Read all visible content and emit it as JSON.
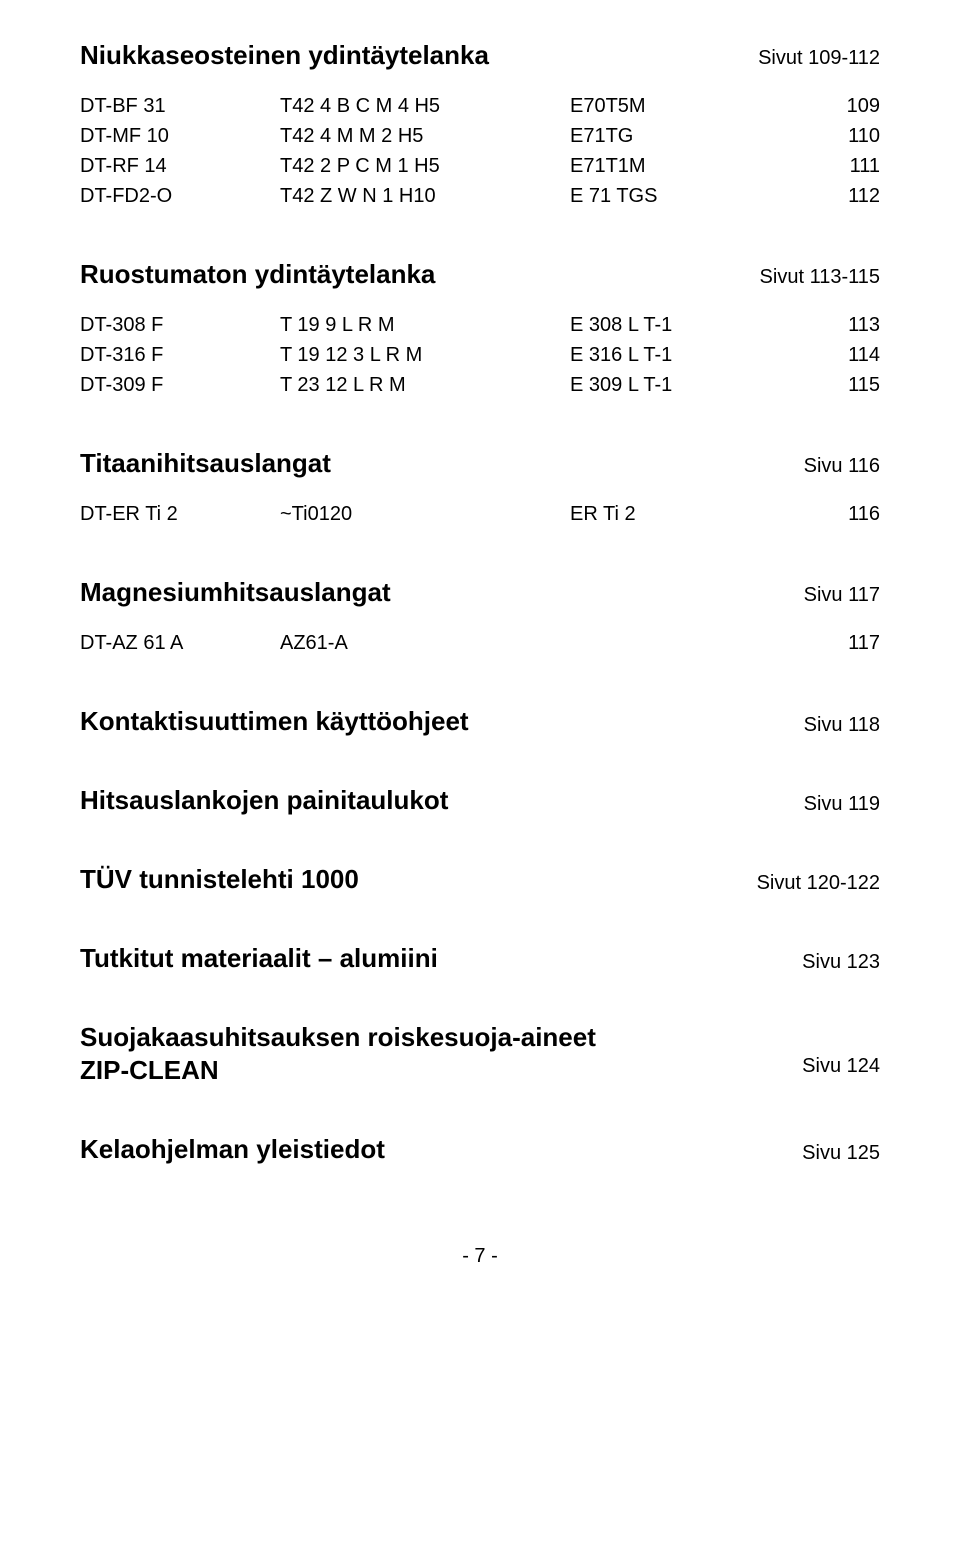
{
  "sections": [
    {
      "title": "Niukkaseosteinen ydintäytelanka",
      "pageref": "Sivut 109-112",
      "rows": [
        {
          "c1": "DT-BF 31",
          "c2": "T42 4 B C M 4 H5",
          "c3": "E70T5M",
          "c4": "109"
        },
        {
          "c1": "DT-MF 10",
          "c2": "T42 4 M M 2 H5",
          "c3": "E71TG",
          "c4": "110"
        },
        {
          "c1": "DT-RF 14",
          "c2": "T42 2 P C M 1 H5",
          "c3": "E71T1M",
          "c4": "111"
        },
        {
          "c1": "DT-FD2-O",
          "c2": "T42 Z W N 1 H10",
          "c3": "E 71 TGS",
          "c4": "112"
        }
      ]
    },
    {
      "title": "Ruostumaton ydintäytelanka",
      "pageref": "Sivut 113-115",
      "rows": [
        {
          "c1": "DT-308 F",
          "c2": "T 19 9 L R M",
          "c3": "E 308 L T-1",
          "c4": "113"
        },
        {
          "c1": "DT-316 F",
          "c2": "T 19 12 3 L R M",
          "c3": "E 316 L T-1",
          "c4": "114"
        },
        {
          "c1": "DT-309 F",
          "c2": "T 23 12 L R M",
          "c3": "E 309 L T-1",
          "c4": "115"
        }
      ]
    },
    {
      "title": "Titaanihitsauslangat",
      "pageref": "Sivu 116",
      "rows": [
        {
          "c1": "DT-ER Ti 2",
          "c2": "~Ti0120",
          "c3": "ER Ti 2",
          "c4": "116"
        }
      ]
    },
    {
      "title": "Magnesiumhitsauslangat",
      "pageref": "Sivu 117",
      "rows": [
        {
          "c1": "DT-AZ 61 A",
          "c2": "AZ61-A",
          "c3": "",
          "c4": "117"
        }
      ]
    }
  ],
  "lines": [
    {
      "title": "Kontaktisuuttimen käyttöohjeet",
      "pageref": "Sivu 118"
    },
    {
      "title": "Hitsauslankojen painitaulukot",
      "pageref": "Sivu 119"
    },
    {
      "title": "TÜV tunnistelehti 1000",
      "pageref": "Sivut 120-122"
    },
    {
      "title": "Tutkitut materiaalit – alumiini",
      "pageref": "Sivu 123"
    }
  ],
  "twoLine": {
    "title": "Suojakaasuhitsauksen roiskesuoja-aineet",
    "sub": "ZIP-CLEAN",
    "pageref": "Sivu 124"
  },
  "finalLine": {
    "title": "Kelaohjelman yleistiedot",
    "pageref": "Sivu 125"
  },
  "pageNumber": "- 7 -"
}
